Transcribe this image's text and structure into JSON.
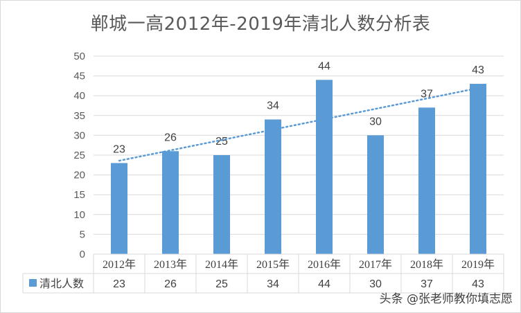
{
  "title": "郸城一高2012年-2019年清北人数分析表",
  "watermark": "头条 @张老师教你填志愿",
  "colors": {
    "bar": "#5b9bd5",
    "trendline": "#5b9bd5",
    "grid": "#d9d9d9",
    "text": "#595959"
  },
  "chart_data": {
    "type": "bar",
    "title": "郸城一高2012年-2019年清北人数分析表",
    "categories": [
      "2012年",
      "2013年",
      "2014年",
      "2015年",
      "2016年",
      "2017年",
      "2018年",
      "2019年"
    ],
    "series": [
      {
        "name": "清北人数",
        "values": [
          23,
          26,
          25,
          34,
          44,
          30,
          37,
          43
        ]
      }
    ],
    "yticks": [
      0,
      5,
      10,
      15,
      20,
      25,
      30,
      35,
      40,
      45,
      50
    ],
    "ylim": [
      0,
      50
    ],
    "grid": true,
    "trendline": "linear",
    "data_table": true,
    "legend": "data-table"
  }
}
